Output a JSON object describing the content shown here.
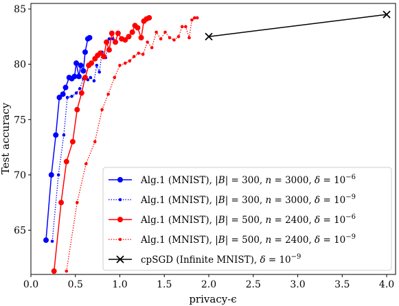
{
  "chart_data": {
    "type": "line",
    "title": "",
    "xlabel": "privacy-ϵ",
    "ylabel": "Test accuracy",
    "xlim": [
      0,
      4.1
    ],
    "ylim": [
      61,
      85.5
    ],
    "xticks": [
      0.0,
      0.5,
      1.0,
      1.5,
      2.0,
      2.5,
      3.0,
      3.5,
      4.0
    ],
    "xtick_labels": [
      "0.0",
      "0.5",
      "1.0",
      "1.5",
      "2.0",
      "2.5",
      "3.0",
      "3.5",
      "4.0"
    ],
    "yticks": [
      65,
      70,
      75,
      80,
      85
    ],
    "ytick_labels": [
      "65",
      "70",
      "75",
      "80",
      "85"
    ],
    "grid": false,
    "legend": "lower-right",
    "series": [
      {
        "name": "Alg.1 (MNIST), |B| = 300, n = 3000, δ = 10⁻⁶",
        "color": "#0000ff",
        "style": "solid",
        "marker": "circle-large",
        "points": [
          [
            0.17,
            64.1
          ],
          [
            0.23,
            70.0
          ],
          [
            0.28,
            73.6
          ],
          [
            0.32,
            77.0
          ],
          [
            0.36,
            77.3
          ],
          [
            0.39,
            77.9
          ],
          [
            0.43,
            78.8
          ],
          [
            0.46,
            78.7
          ],
          [
            0.49,
            78.9
          ],
          [
            0.51,
            80.1
          ],
          [
            0.54,
            78.9
          ],
          [
            0.56,
            79.9
          ],
          [
            0.59,
            79.4
          ],
          [
            0.61,
            81.1
          ],
          [
            0.64,
            82.3
          ],
          [
            0.66,
            82.4
          ]
        ]
      },
      {
        "name": "Alg.1 (MNIST), |B| = 300, n = 3000, δ = 10⁻⁹",
        "color": "#0000ff",
        "style": "dotted",
        "marker": "circle-small",
        "points": [
          [
            0.24,
            64.0
          ],
          [
            0.31,
            70.0
          ],
          [
            0.37,
            73.6
          ],
          [
            0.41,
            77.0
          ],
          [
            0.46,
            77.1
          ],
          [
            0.51,
            77.4
          ],
          [
            0.55,
            77.8
          ],
          [
            0.59,
            78.7
          ],
          [
            0.64,
            78.6
          ],
          [
            0.67,
            78.8
          ],
          [
            0.71,
            78.5
          ],
          [
            0.74,
            79.9
          ],
          [
            0.77,
            79.3
          ],
          [
            0.8,
            81.1
          ],
          [
            0.84,
            80.6
          ],
          [
            0.88,
            82.3
          ],
          [
            0.92,
            82.3
          ]
        ]
      },
      {
        "name": "Alg.1 (MNIST), |B| = 500, n = 2400, δ = 10⁻⁶",
        "color": "#ff0000",
        "style": "solid",
        "marker": "circle-large",
        "points": [
          [
            0.26,
            61.3
          ],
          [
            0.34,
            67.5
          ],
          [
            0.4,
            71.2
          ],
          [
            0.47,
            73.0
          ],
          [
            0.52,
            75.9
          ],
          [
            0.57,
            77.4
          ],
          [
            0.61,
            78.8
          ],
          [
            0.65,
            79.9
          ],
          [
            0.68,
            80.1
          ],
          [
            0.72,
            80.5
          ],
          [
            0.75,
            80.8
          ],
          [
            0.78,
            81.0
          ],
          [
            0.82,
            80.7
          ],
          [
            0.85,
            82.0
          ],
          [
            0.88,
            81.3
          ],
          [
            0.91,
            82.8
          ],
          [
            0.95,
            82.0
          ],
          [
            0.98,
            82.8
          ],
          [
            1.02,
            82.3
          ],
          [
            1.06,
            82.2
          ],
          [
            1.1,
            82.5
          ],
          [
            1.14,
            82.9
          ],
          [
            1.17,
            83.5
          ],
          [
            1.2,
            83.3
          ],
          [
            1.24,
            82.4
          ],
          [
            1.27,
            83.9
          ],
          [
            1.3,
            84.1
          ],
          [
            1.33,
            84.2
          ]
        ]
      },
      {
        "name": "Alg.1 (MNIST), |B| = 500, n = 2400, δ = 10⁻⁹",
        "color": "#ff0000",
        "style": "dotted",
        "marker": "circle-small",
        "points": [
          [
            0.4,
            61.3
          ],
          [
            0.52,
            67.5
          ],
          [
            0.62,
            71.0
          ],
          [
            0.72,
            73.0
          ],
          [
            0.8,
            75.9
          ],
          [
            0.87,
            77.3
          ],
          [
            0.94,
            78.8
          ],
          [
            1.0,
            79.9
          ],
          [
            1.06,
            80.1
          ],
          [
            1.11,
            80.3
          ],
          [
            1.16,
            80.7
          ],
          [
            1.21,
            81.0
          ],
          [
            1.26,
            80.9
          ],
          [
            1.31,
            82.0
          ],
          [
            1.36,
            81.5
          ],
          [
            1.41,
            82.9
          ],
          [
            1.46,
            82.3
          ],
          [
            1.51,
            82.9
          ],
          [
            1.56,
            82.4
          ],
          [
            1.61,
            82.2
          ],
          [
            1.66,
            82.5
          ],
          [
            1.7,
            83.4
          ],
          [
            1.74,
            83.4
          ],
          [
            1.78,
            82.4
          ],
          [
            1.81,
            84.0
          ],
          [
            1.84,
            84.2
          ],
          [
            1.87,
            84.2
          ]
        ]
      },
      {
        "name": "cpSGD (Infinite MNIST), δ = 10⁻⁹",
        "color": "#000000",
        "style": "solid",
        "marker": "x",
        "points": [
          [
            2.0,
            82.5
          ],
          [
            4.0,
            84.5
          ]
        ]
      }
    ]
  },
  "legend_entries": [
    {
      "prefix": "Alg.1 (MNIST), |",
      "v1": "B",
      "mid1": "| = 300, ",
      "v2": "n",
      "mid2": " = 3000, ",
      "v3": "δ",
      "mid3": " = 10",
      "sup": "−6"
    },
    {
      "prefix": "Alg.1 (MNIST), |",
      "v1": "B",
      "mid1": "| = 300, ",
      "v2": "n",
      "mid2": " = 3000, ",
      "v3": "δ",
      "mid3": " = 10",
      "sup": "−9"
    },
    {
      "prefix": "Alg.1 (MNIST), |",
      "v1": "B",
      "mid1": "| = 500, ",
      "v2": "n",
      "mid2": " = 2400, ",
      "v3": "δ",
      "mid3": " = 10",
      "sup": "−6"
    },
    {
      "prefix": "Alg.1 (MNIST), |",
      "v1": "B",
      "mid1": "| = 500, ",
      "v2": "n",
      "mid2": " = 2400, ",
      "v3": "δ",
      "mid3": " = 10",
      "sup": "−9"
    },
    {
      "prefix": "cpSGD (Infinite MNIST), ",
      "v1": "",
      "mid1": "",
      "v2": "",
      "mid2": "",
      "v3": "δ",
      "mid3": " = 10",
      "sup": "−9"
    }
  ]
}
